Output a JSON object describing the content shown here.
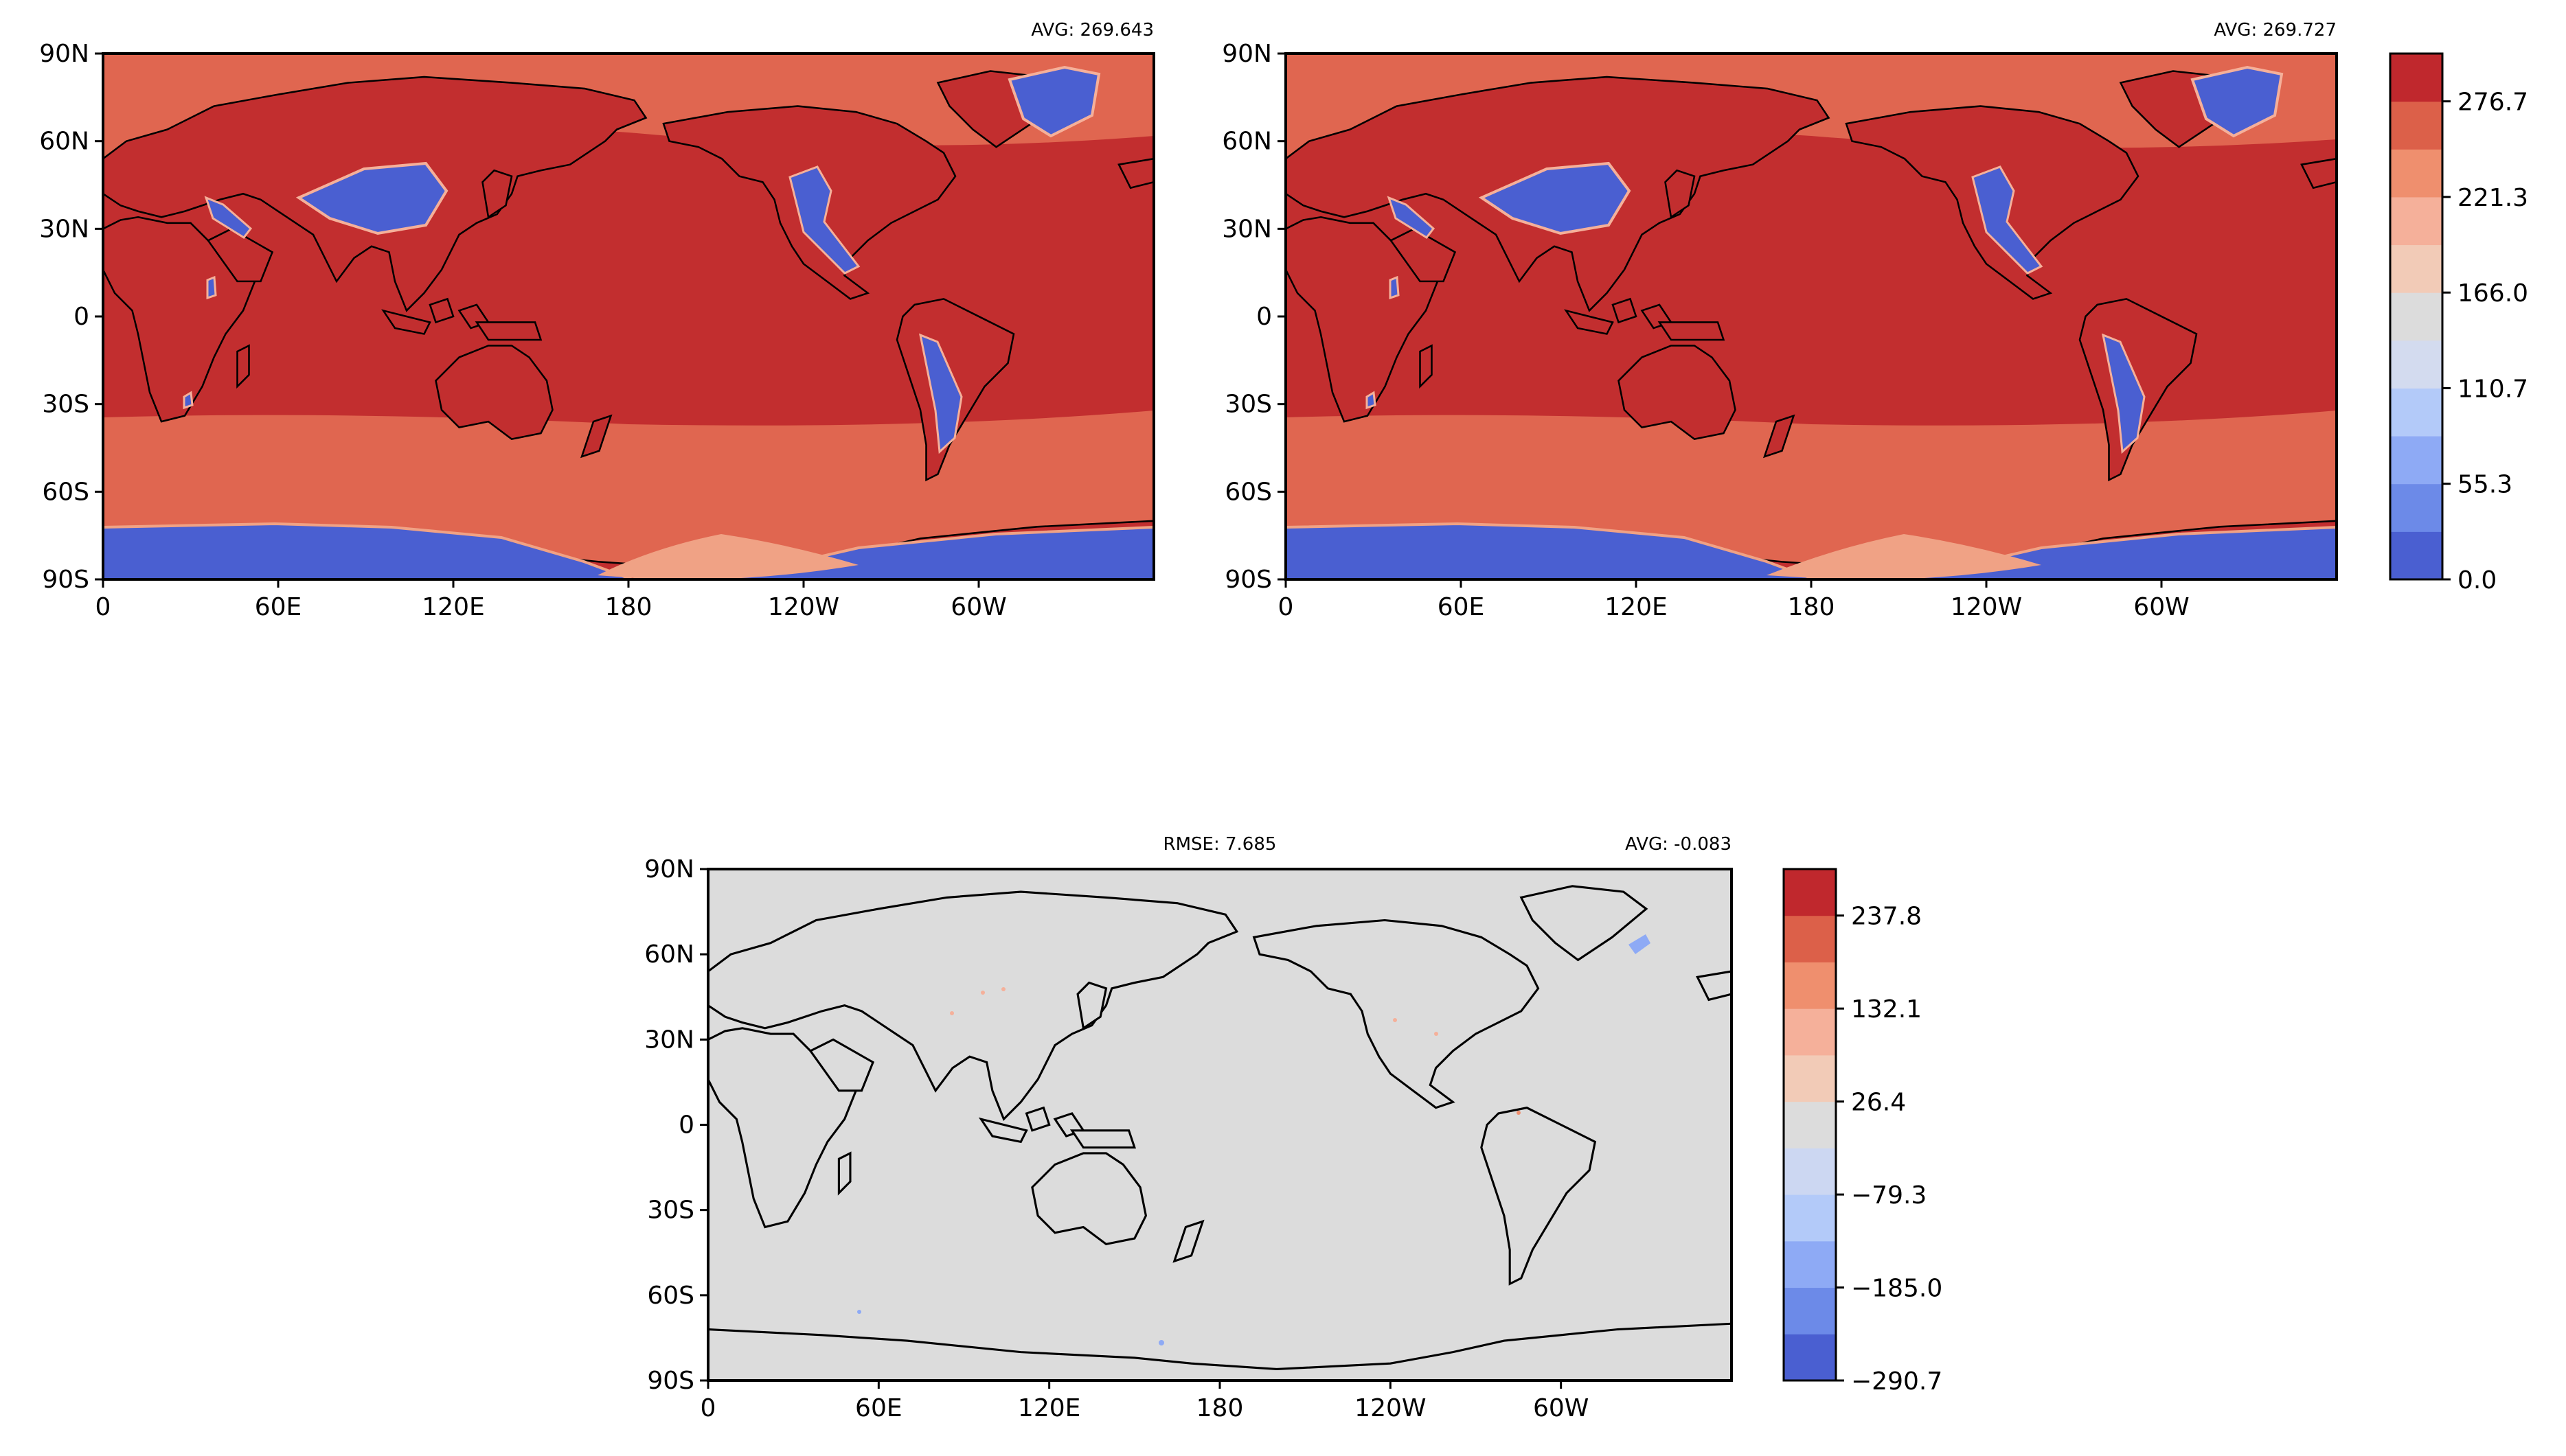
{
  "panels": [
    {
      "id": "test",
      "avg_label": "AVG: 269.643",
      "y_ticks": [
        "90N",
        "60N",
        "30N",
        "0",
        "30S",
        "60S",
        "90S"
      ],
      "x_ticks": [
        "0",
        "60E",
        "120E",
        "180",
        "120W",
        "60W"
      ]
    },
    {
      "id": "ref",
      "avg_label": "AVG: 269.727",
      "y_ticks": [
        "90N",
        "60N",
        "30N",
        "0",
        "30S",
        "60S",
        "90S"
      ],
      "x_ticks": [
        "0",
        "60E",
        "120E",
        "180",
        "120W",
        "60W"
      ]
    },
    {
      "id": "diff",
      "rmse_label": "RMSE: 7.685",
      "avg_label": "AVG: -0.083",
      "y_ticks": [
        "90N",
        "60N",
        "30N",
        "0",
        "30S",
        "60S",
        "90S"
      ],
      "x_ticks": [
        "0",
        "60E",
        "120E",
        "180",
        "120W",
        "60W"
      ]
    }
  ],
  "colorbars": {
    "top": {
      "ticks": [
        "0.0",
        "55.3",
        "110.7",
        "166.0",
        "221.3",
        "276.7"
      ],
      "colors": [
        "#4a5fd1",
        "#6c8ae8",
        "#8eaaf5",
        "#b3caf9",
        "#d3dbef",
        "#dcdcdc",
        "#f2cbb7",
        "#f5b09a",
        "#ef8f6e",
        "#dc6049",
        "#c0282d"
      ]
    },
    "diff": {
      "ticks": [
        "−290.7",
        "−185.0",
        "−79.3",
        "26.4",
        "132.1",
        "237.8"
      ],
      "colors": [
        "#4a5fd1",
        "#6c8ae8",
        "#8eaaf5",
        "#b3caf9",
        "#ccd7f2",
        "#dcdcdc",
        "#f2cbb7",
        "#f5b09a",
        "#ef8f6e",
        "#dc6049",
        "#c0282d"
      ]
    }
  },
  "colors": {
    "warm_high": "#c22e2f",
    "warm_mid": "#e06650",
    "warm_low": "#f0a285",
    "cold": "#4a5fd1",
    "neutral": "#dcdcdc",
    "coast": "#000000"
  }
}
